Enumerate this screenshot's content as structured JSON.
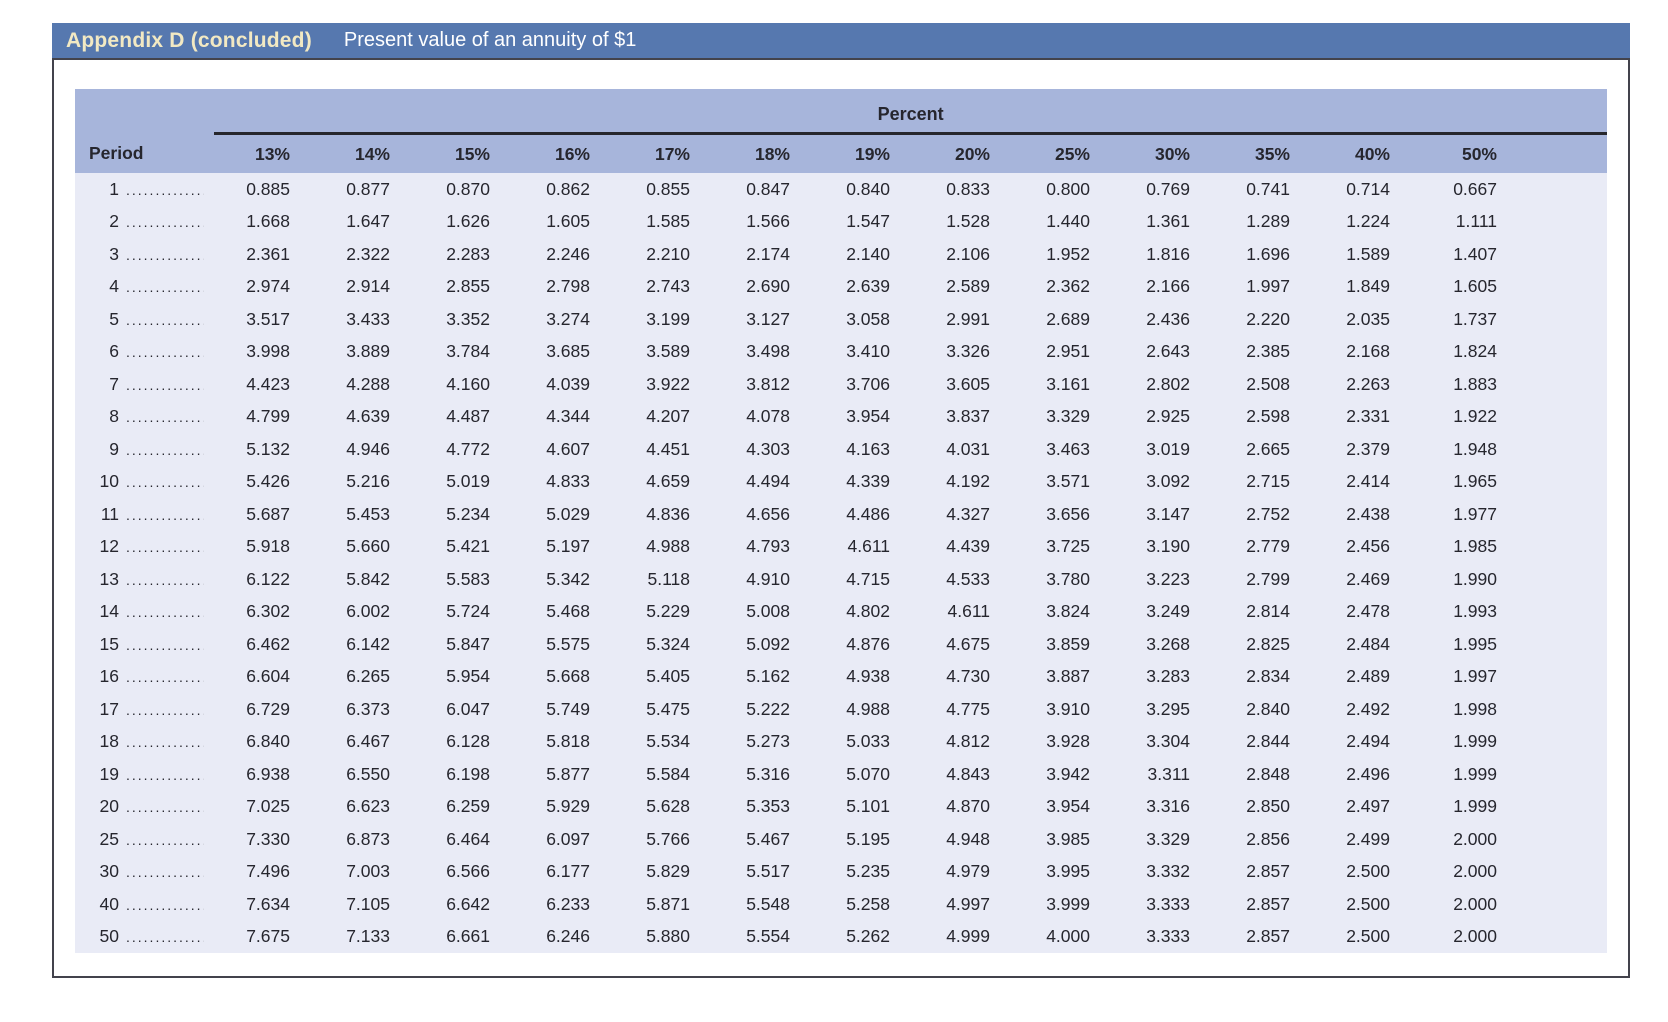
{
  "title_bar": {
    "label": "Appendix D (concluded)",
    "subtitle": "Present value of an annuity of $1"
  },
  "table": {
    "group_header": "Percent",
    "period_header": "Period",
    "dot_leader": "..................",
    "columns": [
      "13%",
      "14%",
      "15%",
      "16%",
      "17%",
      "18%",
      "19%",
      "20%",
      "25%",
      "30%",
      "35%",
      "40%",
      "50%"
    ],
    "rows": [
      {
        "period": "1",
        "values": [
          "0.885",
          "0.877",
          "0.870",
          "0.862",
          "0.855",
          "0.847",
          "0.840",
          "0.833",
          "0.800",
          "0.769",
          "0.741",
          "0.714",
          "0.667"
        ]
      },
      {
        "period": "2",
        "values": [
          "1.668",
          "1.647",
          "1.626",
          "1.605",
          "1.585",
          "1.566",
          "1.547",
          "1.528",
          "1.440",
          "1.361",
          "1.289",
          "1.224",
          "1.111"
        ]
      },
      {
        "period": "3",
        "values": [
          "2.361",
          "2.322",
          "2.283",
          "2.246",
          "2.210",
          "2.174",
          "2.140",
          "2.106",
          "1.952",
          "1.816",
          "1.696",
          "1.589",
          "1.407"
        ]
      },
      {
        "period": "4",
        "values": [
          "2.974",
          "2.914",
          "2.855",
          "2.798",
          "2.743",
          "2.690",
          "2.639",
          "2.589",
          "2.362",
          "2.166",
          "1.997",
          "1.849",
          "1.605"
        ]
      },
      {
        "period": "5",
        "values": [
          "3.517",
          "3.433",
          "3.352",
          "3.274",
          "3.199",
          "3.127",
          "3.058",
          "2.991",
          "2.689",
          "2.436",
          "2.220",
          "2.035",
          "1.737"
        ]
      },
      {
        "period": "6",
        "values": [
          "3.998",
          "3.889",
          "3.784",
          "3.685",
          "3.589",
          "3.498",
          "3.410",
          "3.326",
          "2.951",
          "2.643",
          "2.385",
          "2.168",
          "1.824"
        ]
      },
      {
        "period": "7",
        "values": [
          "4.423",
          "4.288",
          "4.160",
          "4.039",
          "3.922",
          "3.812",
          "3.706",
          "3.605",
          "3.161",
          "2.802",
          "2.508",
          "2.263",
          "1.883"
        ]
      },
      {
        "period": "8",
        "values": [
          "4.799",
          "4.639",
          "4.487",
          "4.344",
          "4.207",
          "4.078",
          "3.954",
          "3.837",
          "3.329",
          "2.925",
          "2.598",
          "2.331",
          "1.922"
        ]
      },
      {
        "period": "9",
        "values": [
          "5.132",
          "4.946",
          "4.772",
          "4.607",
          "4.451",
          "4.303",
          "4.163",
          "4.031",
          "3.463",
          "3.019",
          "2.665",
          "2.379",
          "1.948"
        ]
      },
      {
        "period": "10",
        "values": [
          "5.426",
          "5.216",
          "5.019",
          "4.833",
          "4.659",
          "4.494",
          "4.339",
          "4.192",
          "3.571",
          "3.092",
          "2.715",
          "2.414",
          "1.965"
        ]
      },
      {
        "period": "11",
        "values": [
          "5.687",
          "5.453",
          "5.234",
          "5.029",
          "4.836",
          "4.656",
          "4.486",
          "4.327",
          "3.656",
          "3.147",
          "2.752",
          "2.438",
          "1.977"
        ]
      },
      {
        "period": "12",
        "values": [
          "5.918",
          "5.660",
          "5.421",
          "5.197",
          "4.988",
          "4.793",
          "4.611",
          "4.439",
          "3.725",
          "3.190",
          "2.779",
          "2.456",
          "1.985"
        ]
      },
      {
        "period": "13",
        "values": [
          "6.122",
          "5.842",
          "5.583",
          "5.342",
          "5.118",
          "4.910",
          "4.715",
          "4.533",
          "3.780",
          "3.223",
          "2.799",
          "2.469",
          "1.990"
        ]
      },
      {
        "period": "14",
        "values": [
          "6.302",
          "6.002",
          "5.724",
          "5.468",
          "5.229",
          "5.008",
          "4.802",
          "4.611",
          "3.824",
          "3.249",
          "2.814",
          "2.478",
          "1.993"
        ]
      },
      {
        "period": "15",
        "values": [
          "6.462",
          "6.142",
          "5.847",
          "5.575",
          "5.324",
          "5.092",
          "4.876",
          "4.675",
          "3.859",
          "3.268",
          "2.825",
          "2.484",
          "1.995"
        ]
      },
      {
        "period": "16",
        "values": [
          "6.604",
          "6.265",
          "5.954",
          "5.668",
          "5.405",
          "5.162",
          "4.938",
          "4.730",
          "3.887",
          "3.283",
          "2.834",
          "2.489",
          "1.997"
        ]
      },
      {
        "period": "17",
        "values": [
          "6.729",
          "6.373",
          "6.047",
          "5.749",
          "5.475",
          "5.222",
          "4.988",
          "4.775",
          "3.910",
          "3.295",
          "2.840",
          "2.492",
          "1.998"
        ]
      },
      {
        "period": "18",
        "values": [
          "6.840",
          "6.467",
          "6.128",
          "5.818",
          "5.534",
          "5.273",
          "5.033",
          "4.812",
          "3.928",
          "3.304",
          "2.844",
          "2.494",
          "1.999"
        ]
      },
      {
        "period": "19",
        "values": [
          "6.938",
          "6.550",
          "6.198",
          "5.877",
          "5.584",
          "5.316",
          "5.070",
          "4.843",
          "3.942",
          "3.311",
          "2.848",
          "2.496",
          "1.999"
        ]
      },
      {
        "period": "20",
        "values": [
          "7.025",
          "6.623",
          "6.259",
          "5.929",
          "5.628",
          "5.353",
          "5.101",
          "4.870",
          "3.954",
          "3.316",
          "2.850",
          "2.497",
          "1.999"
        ]
      },
      {
        "period": "25",
        "values": [
          "7.330",
          "6.873",
          "6.464",
          "6.097",
          "5.766",
          "5.467",
          "5.195",
          "4.948",
          "3.985",
          "3.329",
          "2.856",
          "2.499",
          "2.000"
        ]
      },
      {
        "period": "30",
        "values": [
          "7.496",
          "7.003",
          "6.566",
          "6.177",
          "5.829",
          "5.517",
          "5.235",
          "4.979",
          "3.995",
          "3.332",
          "2.857",
          "2.500",
          "2.000"
        ]
      },
      {
        "period": "40",
        "values": [
          "7.634",
          "7.105",
          "6.642",
          "6.233",
          "5.871",
          "5.548",
          "5.258",
          "4.997",
          "3.999",
          "3.333",
          "2.857",
          "2.500",
          "2.000"
        ]
      },
      {
        "period": "50",
        "values": [
          "7.675",
          "7.133",
          "6.661",
          "6.246",
          "5.880",
          "5.554",
          "5.262",
          "4.999",
          "4.000",
          "3.333",
          "2.857",
          "2.500",
          "2.000"
        ]
      }
    ]
  },
  "colors": {
    "title_bar_bg": "#5678af",
    "title_text": "#f2e9c3",
    "subtitle_text": "#ffffff",
    "header_band_bg": "#a7b5db",
    "body_bg": "#e9ebf6",
    "text": "#26262e",
    "card_border": "#43434c",
    "rule": "#26262c"
  }
}
